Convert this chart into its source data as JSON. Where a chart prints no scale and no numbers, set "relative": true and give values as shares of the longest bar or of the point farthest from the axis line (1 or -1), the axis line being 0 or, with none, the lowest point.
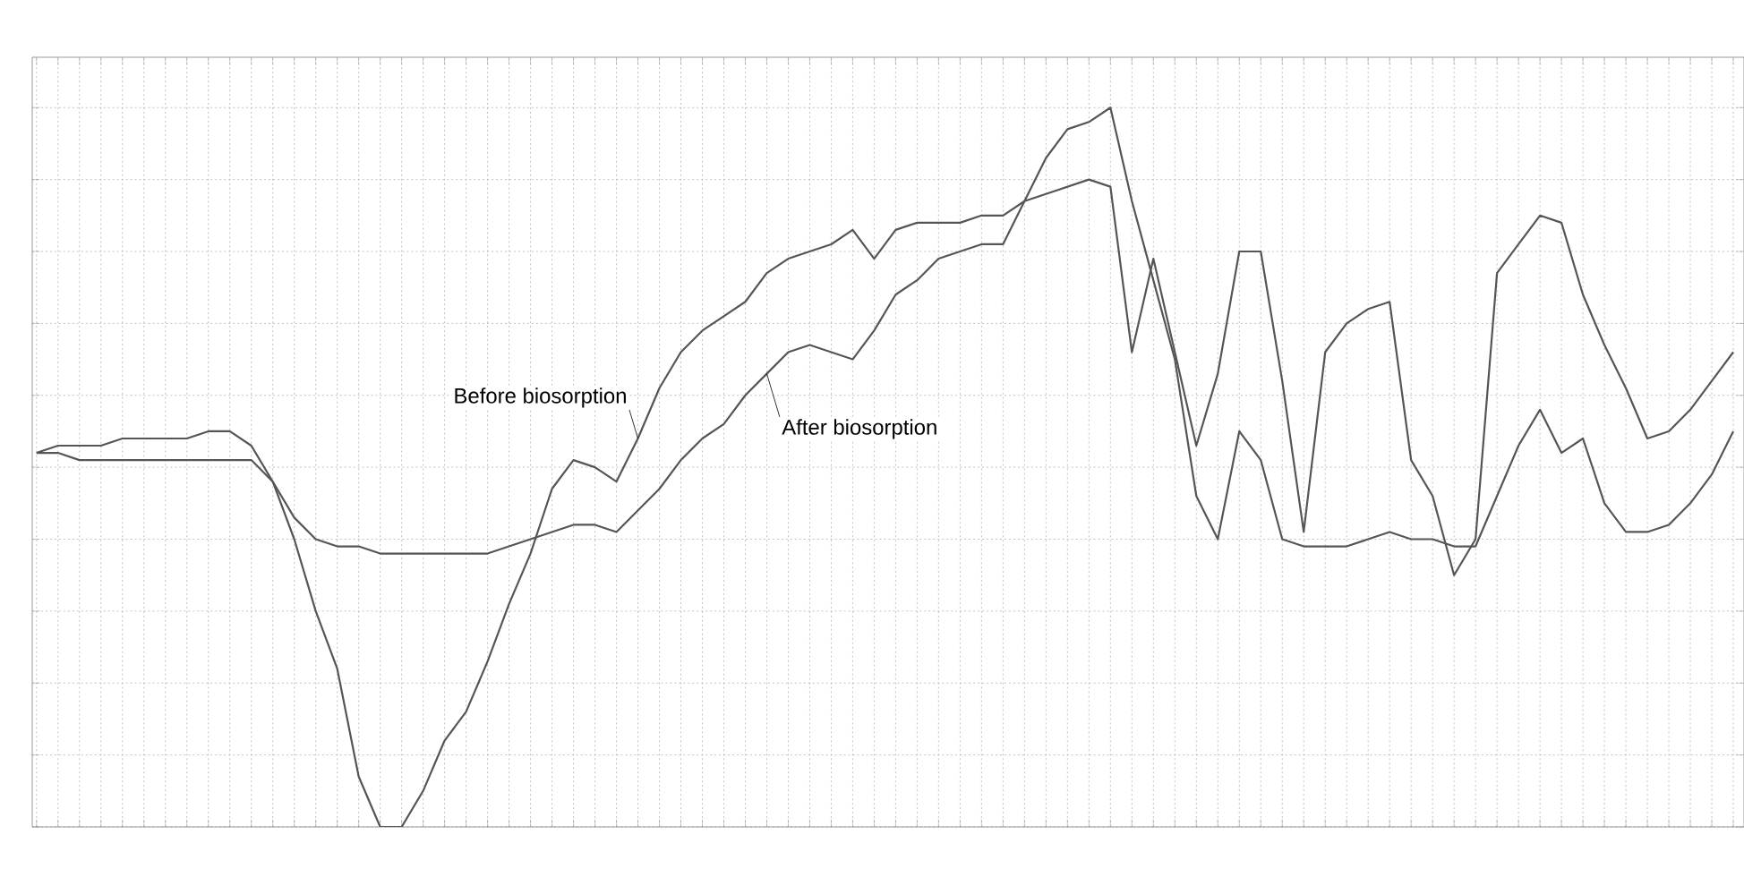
{
  "chart_data": {
    "type": "line",
    "relative": true,
    "grid": true,
    "categories": [
      null,
      null,
      null,
      null,
      null,
      null,
      null,
      null,
      null,
      null,
      null,
      null,
      null,
      null,
      null,
      null,
      null,
      null,
      null,
      null,
      null,
      null,
      null,
      null,
      null,
      null,
      null,
      null,
      null,
      null,
      null,
      null,
      null,
      null,
      null,
      null,
      null,
      null,
      null,
      null,
      null,
      null,
      null,
      null,
      null,
      null,
      null,
      null,
      null,
      null,
      null,
      null,
      null,
      null,
      null,
      null,
      null,
      null,
      null,
      null,
      null,
      null,
      null,
      null,
      null,
      null,
      null,
      null,
      null,
      null,
      null,
      null,
      null,
      null,
      null,
      null,
      null,
      null,
      null,
      null
    ],
    "series": [
      {
        "name": "Before biosorption",
        "color": "#555555",
        "values": [
          0.52,
          0.53,
          0.53,
          0.53,
          0.54,
          0.54,
          0.54,
          0.54,
          0.55,
          0.55,
          0.53,
          0.48,
          0.4,
          0.3,
          0.22,
          0.07,
          0.0,
          0.0,
          0.05,
          0.12,
          0.16,
          0.23,
          0.31,
          0.38,
          0.47,
          0.51,
          0.5,
          0.48,
          0.54,
          0.61,
          0.66,
          0.69,
          0.71,
          0.73,
          0.77,
          0.79,
          0.8,
          0.81,
          0.83,
          0.79,
          0.83,
          0.84,
          0.84,
          0.84,
          0.85,
          0.85,
          0.87,
          0.88,
          0.89,
          0.9,
          0.89,
          0.66,
          0.79,
          0.66,
          0.53,
          0.63,
          0.8,
          0.8,
          0.62,
          0.41,
          0.66,
          0.7,
          0.72,
          0.73,
          0.51,
          0.46,
          0.35,
          0.4,
          0.77,
          0.81,
          0.85,
          0.84,
          0.74,
          0.67,
          0.61,
          0.54,
          0.55,
          0.58,
          0.62,
          0.66
        ]
      },
      {
        "name": "After biosorption",
        "color": "#555555",
        "values": [
          0.52,
          0.52,
          0.51,
          0.51,
          0.51,
          0.51,
          0.51,
          0.51,
          0.51,
          0.51,
          0.51,
          0.48,
          0.43,
          0.4,
          0.39,
          0.39,
          0.38,
          0.38,
          0.38,
          0.38,
          0.38,
          0.38,
          0.39,
          0.4,
          0.41,
          0.42,
          0.42,
          0.41,
          0.44,
          0.47,
          0.51,
          0.54,
          0.56,
          0.6,
          0.63,
          0.66,
          0.67,
          0.66,
          0.65,
          0.69,
          0.74,
          0.76,
          0.79,
          0.8,
          0.81,
          0.81,
          0.87,
          0.93,
          0.97,
          0.98,
          1.0,
          0.87,
          0.76,
          0.65,
          0.46,
          0.4,
          0.55,
          0.51,
          0.4,
          0.39,
          0.39,
          0.39,
          0.4,
          0.41,
          0.4,
          0.4,
          0.39,
          0.39,
          0.46,
          0.53,
          0.58,
          0.52,
          0.54,
          0.45,
          0.41,
          0.41,
          0.42,
          0.45,
          0.49,
          0.55
        ]
      }
    ]
  }
}
